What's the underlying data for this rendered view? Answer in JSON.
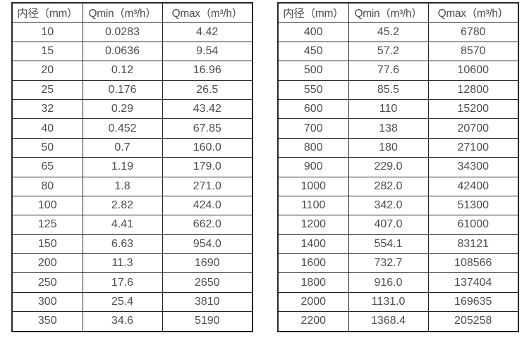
{
  "page": {
    "background": "#ffffff"
  },
  "colors": {
    "border": "#262626",
    "text": "#4d4d4d"
  },
  "tables": [
    {
      "name": "flow-rate-table-small-diameters",
      "headers": [
        "内径（mm）",
        "Qmin（m³/h）",
        "Qmax（m³/h）"
      ],
      "rows": [
        [
          "10",
          "0.0283",
          "4.42"
        ],
        [
          "15",
          "0.0636",
          "9.54"
        ],
        [
          "20",
          "0.12",
          "16.96"
        ],
        [
          "25",
          "0.176",
          "26.5"
        ],
        [
          "32",
          "0.29",
          "43.42"
        ],
        [
          "40",
          "0.452",
          "67.85"
        ],
        [
          "50",
          "0.7",
          "160.0"
        ],
        [
          "65",
          "1.19",
          "179.0"
        ],
        [
          "80",
          "1.8",
          "271.0"
        ],
        [
          "100",
          "2.82",
          "424.0"
        ],
        [
          "125",
          "4.41",
          "662.0"
        ],
        [
          "150",
          "6.63",
          "954.0"
        ],
        [
          "200",
          "11.3",
          "1690"
        ],
        [
          "250",
          "17.6",
          "2650"
        ],
        [
          "300",
          "25.4",
          "3810"
        ],
        [
          "350",
          "34.6",
          "5190"
        ]
      ]
    },
    {
      "name": "flow-rate-table-large-diameters",
      "headers": [
        "内径（mm）",
        "Qmin（m³/h）",
        "Qmax（m³/h）"
      ],
      "rows": [
        [
          "400",
          "45.2",
          "6780"
        ],
        [
          "450",
          "57.2",
          "8570"
        ],
        [
          "500",
          "77.6",
          "10600"
        ],
        [
          "550",
          "85.5",
          "12800"
        ],
        [
          "600",
          "110",
          "15200"
        ],
        [
          "700",
          "138",
          "20700"
        ],
        [
          "800",
          "180",
          "27100"
        ],
        [
          "900",
          "229.0",
          "34300"
        ],
        [
          "1000",
          "282.0",
          "42400"
        ],
        [
          "1100",
          "342.0",
          "51300"
        ],
        [
          "1200",
          "407.0",
          "61000"
        ],
        [
          "1400",
          "554.1",
          "83121"
        ],
        [
          "1600",
          "732.7",
          "108566"
        ],
        [
          "1800",
          "916.0",
          "137404"
        ],
        [
          "2000",
          "1131.0",
          "169635"
        ],
        [
          "2200",
          "1368.4",
          "205258"
        ]
      ]
    }
  ]
}
